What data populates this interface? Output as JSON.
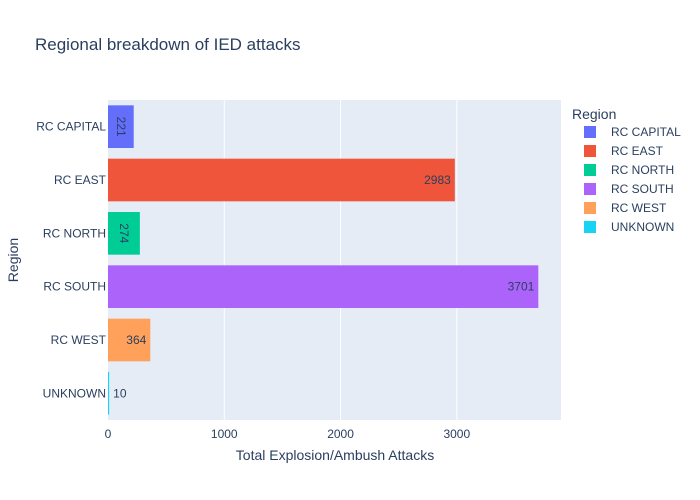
{
  "chart_data": {
    "type": "bar",
    "orientation": "horizontal",
    "title": "Regional breakdown of IED attacks",
    "xlabel": "Total Explosion/Ambush Attacks",
    "ylabel": "Region",
    "xlim": [
      0,
      3896
    ],
    "xticks": [
      0,
      1000,
      2000,
      3000
    ],
    "xtick_labels": [
      "0",
      "1000",
      "2000",
      "3000"
    ],
    "grid": true,
    "legend": {
      "title": "Region",
      "placement": "right"
    },
    "categories": [
      "RC CAPITAL",
      "RC EAST",
      "RC NORTH",
      "RC SOUTH",
      "RC WEST",
      "UNKNOWN"
    ],
    "values": [
      221,
      2983,
      274,
      3701,
      364,
      10
    ],
    "value_labels": [
      "221",
      "2983",
      "274",
      "3701",
      "364",
      "10"
    ],
    "colors": [
      "#636efa",
      "#EF553B",
      "#00cc96",
      "#ab63fa",
      "#FFA15A",
      "#19d3f3"
    ]
  }
}
